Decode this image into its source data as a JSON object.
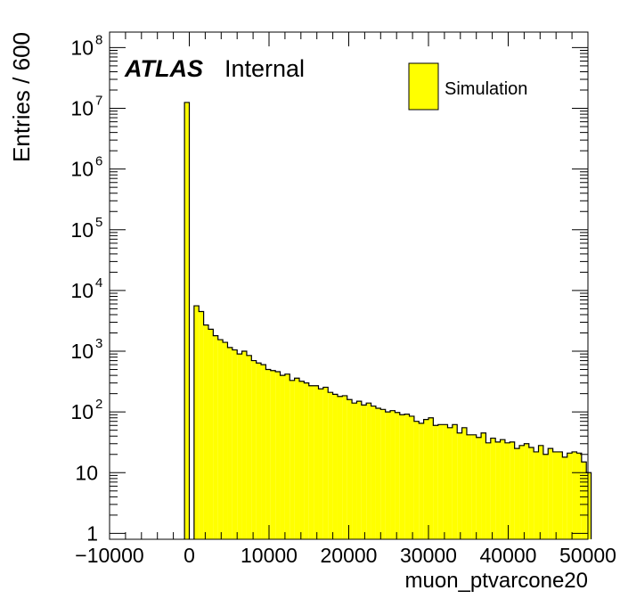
{
  "chart_data": {
    "type": "bar",
    "xlabel": "muon_ptvarcone20",
    "ylabel": "Entries / 600",
    "xlim": [
      -10000,
      50000
    ],
    "ylim": [
      0.8,
      180000000
    ],
    "yscale": "log",
    "bin_width": 600,
    "series": [
      {
        "name": "Simulation",
        "color": "#ffff00",
        "x": [
          -600,
          0,
          600,
          1200,
          1800,
          2400,
          3000,
          3600,
          4200,
          4800,
          5400,
          6000,
          6600,
          7200,
          7800,
          8400,
          9000,
          9600,
          10200,
          10800,
          11400,
          12000,
          12600,
          13200,
          13800,
          14400,
          15000,
          15600,
          16200,
          16800,
          17400,
          18000,
          18600,
          19200,
          19800,
          20400,
          21000,
          21600,
          22200,
          22800,
          23400,
          24000,
          24600,
          25200,
          25800,
          26400,
          27000,
          27600,
          28200,
          28800,
          29400,
          30000,
          30600,
          31200,
          31800,
          32400,
          33000,
          33600,
          34200,
          34800,
          35400,
          36000,
          36600,
          37200,
          37800,
          38400,
          39000,
          39600,
          40200,
          40800,
          41400,
          42000,
          42600,
          43200,
          43800,
          44400,
          45000,
          45600,
          46200,
          46800,
          47400,
          48000,
          48600,
          49200,
          49800
        ],
        "values": [
          12500000,
          0,
          5600,
          4500,
          2700,
          2300,
          1800,
          1550,
          1400,
          1150,
          1050,
          900,
          1000,
          850,
          700,
          640,
          600,
          500,
          480,
          460,
          400,
          420,
          330,
          360,
          320,
          300,
          270,
          270,
          240,
          255,
          210,
          195,
          180,
          185,
          160,
          140,
          150,
          130,
          140,
          125,
          115,
          110,
          100,
          105,
          98,
          90,
          92,
          85,
          70,
          65,
          75,
          80,
          60,
          62,
          62,
          55,
          62,
          45,
          55,
          42,
          42,
          38,
          45,
          31,
          37,
          32,
          35,
          31,
          32,
          25,
          28,
          30,
          26,
          22,
          28,
          20,
          25,
          22,
          22,
          18,
          21,
          22,
          21,
          15,
          10
        ]
      }
    ],
    "x_ticks": [
      "−10000",
      "0",
      "10000",
      "20000",
      "30000",
      "40000",
      "50000"
    ],
    "y_ticks": [
      {
        "value": 1,
        "base": "1",
        "exp": ""
      },
      {
        "value": 10,
        "base": "10",
        "exp": ""
      },
      {
        "value": 100,
        "base": "10",
        "exp": "2"
      },
      {
        "value": 1000,
        "base": "10",
        "exp": "3"
      },
      {
        "value": 10000,
        "base": "10",
        "exp": "4"
      },
      {
        "value": 100000,
        "base": "10",
        "exp": "5"
      },
      {
        "value": 1000000,
        "base": "10",
        "exp": "6"
      },
      {
        "value": 10000000,
        "base": "10",
        "exp": "7"
      },
      {
        "value": 100000000,
        "base": "10",
        "exp": "8"
      }
    ],
    "annotations": {
      "experiment": "ATLAS",
      "status": "Internal"
    },
    "legend": {
      "position": "top-right",
      "label": "Simulation"
    }
  }
}
